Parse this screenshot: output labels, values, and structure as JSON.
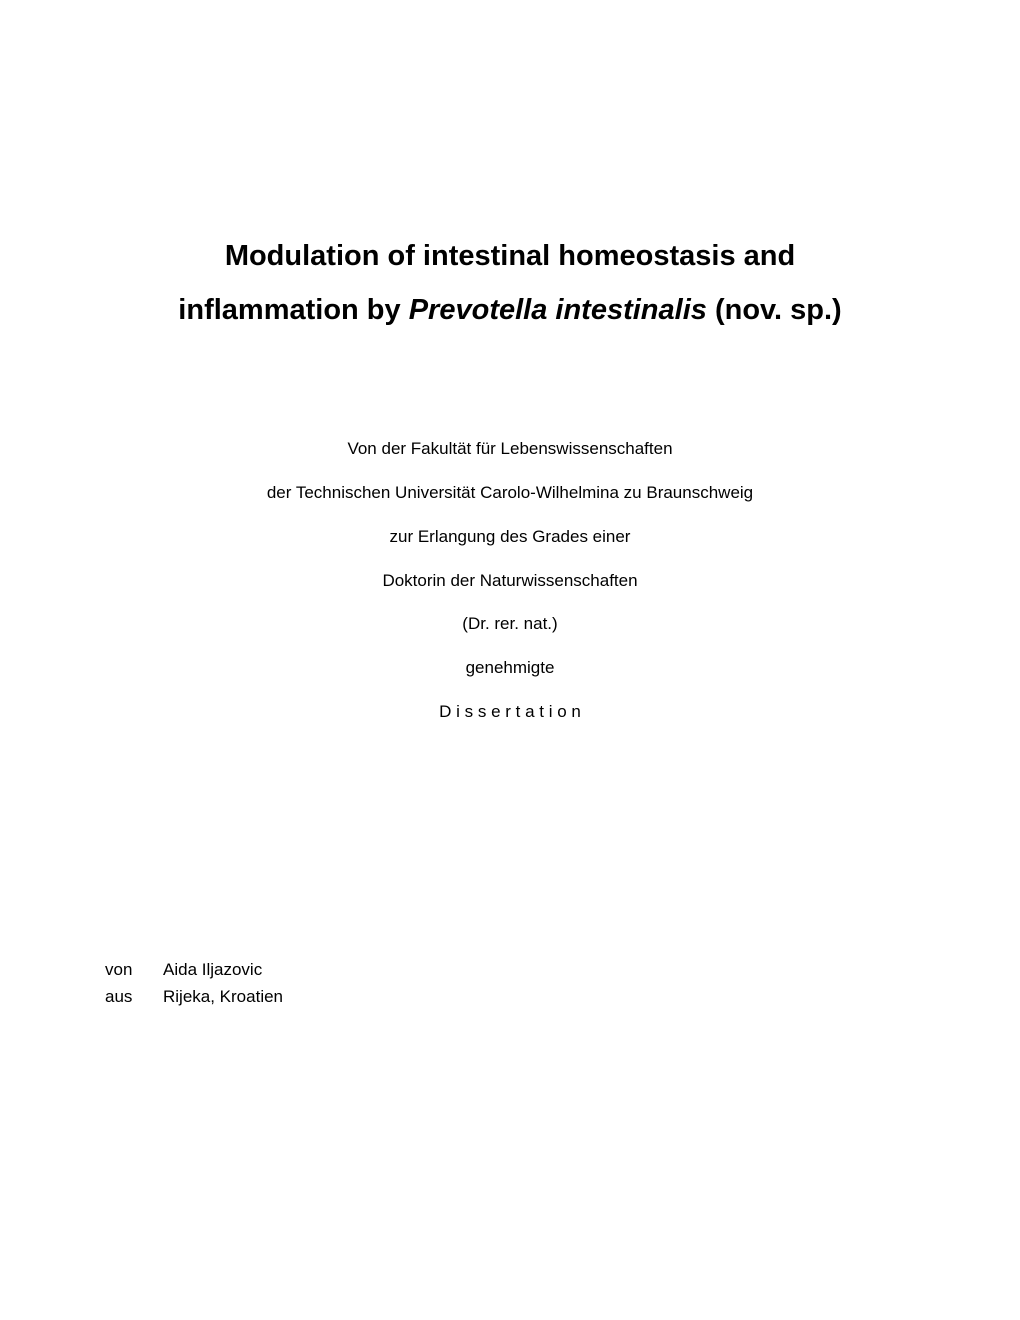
{
  "title": {
    "line1_pre": "Modulation of intestinal homeostasis and",
    "line2_pre": "inflammation by ",
    "line2_italic": "Prevotella intestinalis",
    "line2_post": " (nov. sp.)"
  },
  "faculty": {
    "line1": "Von der Fakultät für Lebenswissenschaften",
    "line2": "der Technischen Universität Carolo-Wilhelmina zu Braunschweig",
    "line3": "zur Erlangung des Grades einer",
    "line4": "Doktorin der Naturwissenschaften",
    "line5": "(Dr. rer. nat.)",
    "line6": "genehmigte",
    "line7": "D i s s e r t a t i o n"
  },
  "author": {
    "von_label": "von",
    "von_value": "Aida Iljazovic",
    "aus_label": "aus",
    "aus_value": "Rijeka, Kroatien"
  },
  "colors": {
    "background": "#ffffff",
    "text": "#000000"
  },
  "typography": {
    "title_fontsize": 29,
    "title_fontweight": "bold",
    "body_fontsize": 17,
    "font_family": "Arial"
  }
}
